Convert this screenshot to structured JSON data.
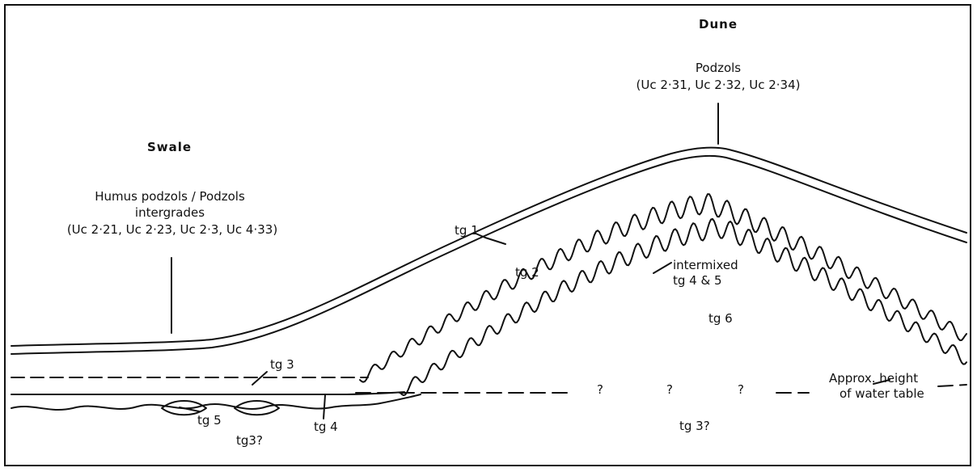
{
  "headings": {
    "dune": "Dune",
    "swale": "Swale"
  },
  "soils": {
    "dune_line1": "Podzols",
    "dune_line2": "(Uc 2·31, Uc 2·32, Uc 2·34)",
    "swale_line1": "Humus podzols / Podzols",
    "swale_line2": "intergrades",
    "swale_line3": "(Uc 2·21, Uc 2·23, Uc 2·3, Uc 4·33)"
  },
  "layers": {
    "tg1": "tg 1",
    "tg2": "tg 2",
    "tg3_upper": "tg 3",
    "tg4": "tg 4",
    "tg5": "tg 5",
    "tg3q_left": "tg3?",
    "intermixed_line1": "intermixed",
    "intermixed_line2": "tg 4 & 5",
    "tg6": "tg 6",
    "tg3q_right": "tg 3?"
  },
  "water_table": {
    "q1": "?",
    "q2": "?",
    "q3": "?",
    "label_line1": "Approx. height",
    "label_line2": "of water table"
  }
}
